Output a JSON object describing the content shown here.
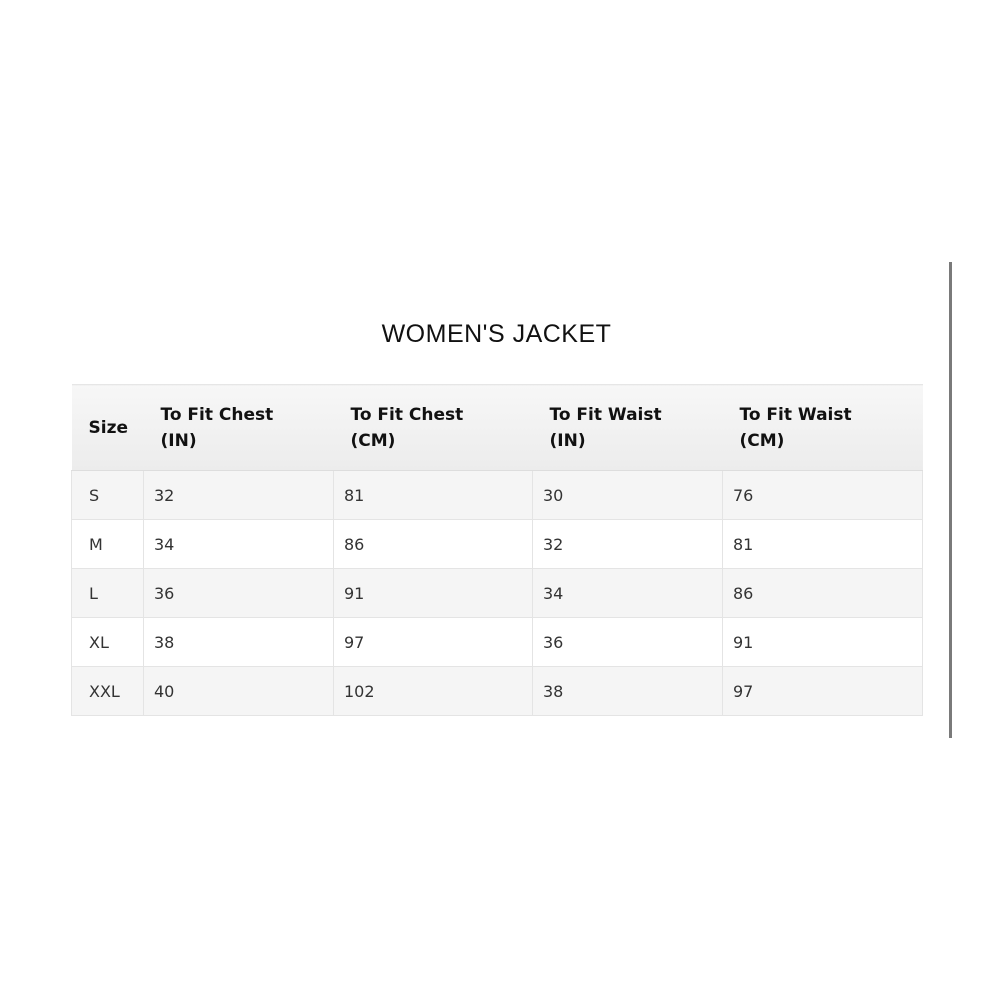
{
  "title": "WOMEN'S JACKET",
  "table": {
    "headers": [
      {
        "line1": "Size",
        "line2": ""
      },
      {
        "line1": "To Fit Chest",
        "line2": "(IN)"
      },
      {
        "line1": "To Fit Chest",
        "line2": "(CM)"
      },
      {
        "line1": "To Fit Waist",
        "line2": "(IN)"
      },
      {
        "line1": "To Fit Waist",
        "line2": "(CM)"
      }
    ],
    "rows": [
      [
        "S",
        "32",
        "81",
        "30",
        "76"
      ],
      [
        "M",
        "34",
        "86",
        "32",
        "81"
      ],
      [
        "L",
        "36",
        "91",
        "34",
        "86"
      ],
      [
        "XL",
        "38",
        "97",
        "36",
        "91"
      ],
      [
        "XXL",
        "40",
        "102",
        "38",
        "97"
      ]
    ]
  }
}
